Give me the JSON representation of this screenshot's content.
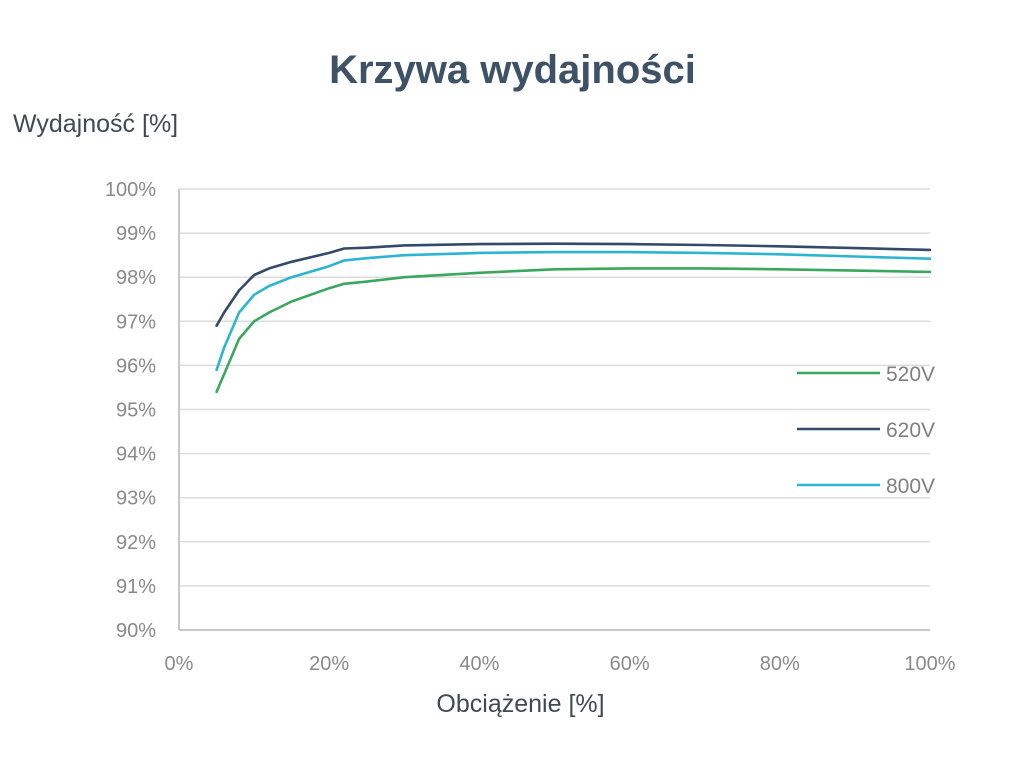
{
  "chart_data": {
    "type": "line",
    "title": "Krzywa wydajności",
    "ylabel": "Wydajność [%]",
    "xlabel": "Obciążenie [%]",
    "xlim": [
      0,
      100
    ],
    "ylim": [
      90,
      100
    ],
    "x_ticks": [
      0,
      20,
      40,
      60,
      80,
      100
    ],
    "x_tick_labels": [
      "0%",
      "20%",
      "40%",
      "60%",
      "80%",
      "100%"
    ],
    "y_ticks": [
      90,
      91,
      92,
      93,
      94,
      95,
      96,
      97,
      98,
      99,
      100
    ],
    "y_tick_labels": [
      "90%",
      "91%",
      "92%",
      "93%",
      "94%",
      "95%",
      "96%",
      "97%",
      "98%",
      "99%",
      "100%"
    ],
    "grid": "horizontal",
    "legend_position": "right",
    "series": [
      {
        "name": "520V",
        "color": "#3aa85c",
        "x": [
          5,
          6,
          8,
          10,
          12,
          15,
          20,
          22,
          25,
          30,
          40,
          50,
          60,
          70,
          80,
          90,
          100
        ],
        "y": [
          95.4,
          95.8,
          96.6,
          97.0,
          97.2,
          97.45,
          97.75,
          97.85,
          97.9,
          98.0,
          98.1,
          98.18,
          98.2,
          98.2,
          98.18,
          98.15,
          98.12
        ]
      },
      {
        "name": "620V",
        "color": "#344a6b",
        "x": [
          5,
          6,
          8,
          10,
          12,
          15,
          20,
          22,
          25,
          30,
          40,
          50,
          60,
          70,
          80,
          90,
          100
        ],
        "y": [
          96.9,
          97.2,
          97.7,
          98.05,
          98.2,
          98.35,
          98.55,
          98.65,
          98.67,
          98.72,
          98.75,
          98.76,
          98.75,
          98.73,
          98.7,
          98.66,
          98.62
        ]
      },
      {
        "name": "800V",
        "color": "#2cb5d1",
        "x": [
          5,
          6,
          8,
          10,
          12,
          15,
          20,
          22,
          25,
          30,
          40,
          50,
          60,
          70,
          80,
          90,
          100
        ],
        "y": [
          95.9,
          96.4,
          97.2,
          97.6,
          97.8,
          98.0,
          98.25,
          98.38,
          98.43,
          98.5,
          98.55,
          98.57,
          98.57,
          98.55,
          98.52,
          98.47,
          98.42
        ]
      }
    ]
  }
}
